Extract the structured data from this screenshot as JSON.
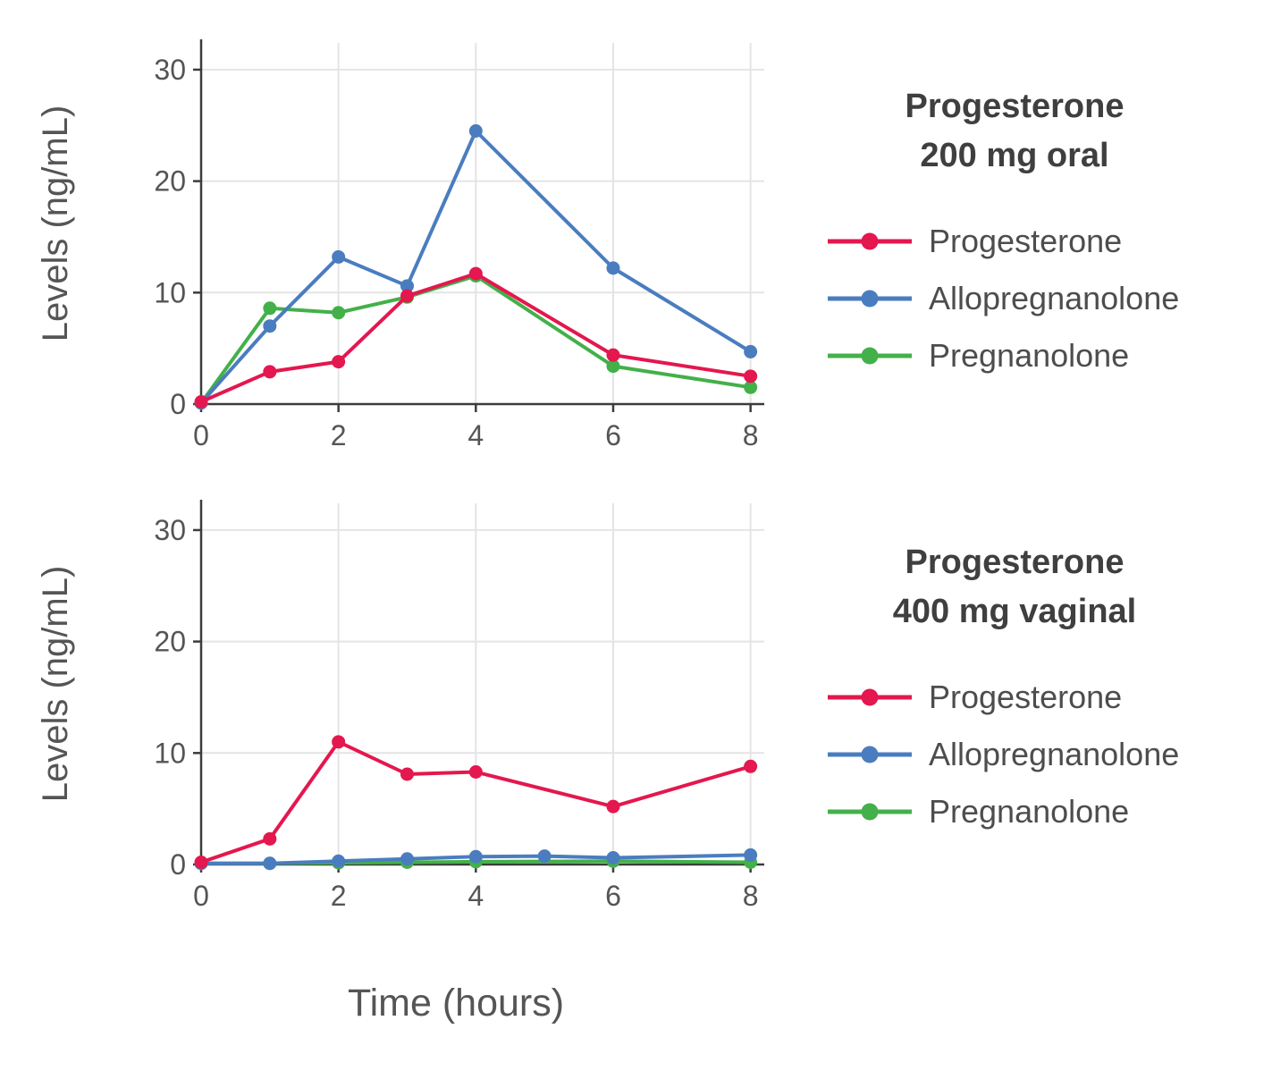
{
  "figure": {
    "xlabel": "Time (hours)",
    "ylabel": "Levels (ng/mL)"
  },
  "colors": {
    "progesterone": "#e4174e",
    "allopregnanolone": "#4a7dbf",
    "pregnanolone": "#43b049",
    "axis": "#3c3c3c",
    "grid": "#e4e4e4",
    "tick_text": "#555555",
    "title_text": "#3f3f3f",
    "legend_text": "#4d4d4d"
  },
  "chart_data": [
    {
      "type": "line",
      "title": "Progesterone 200 mg oral",
      "title_line1": "Progesterone",
      "title_line2": "200 mg oral",
      "xlabel": "Time (hours)",
      "ylabel": "Levels (ng/mL)",
      "xlim": [
        0,
        8.2
      ],
      "ylim": [
        0,
        32.4
      ],
      "x_ticks": [
        0,
        2,
        4,
        6,
        8
      ],
      "y_ticks": [
        0,
        10,
        20,
        30
      ],
      "grid": true,
      "legend_position": "right",
      "series": [
        {
          "name": "Progesterone",
          "color": "#e4174e",
          "x": [
            0,
            1,
            2,
            3,
            4,
            6,
            8
          ],
          "y": [
            0.2,
            2.9,
            3.8,
            9.7,
            11.7,
            4.4,
            2.5
          ]
        },
        {
          "name": "Allopregnanolone",
          "color": "#4a7dbf",
          "x": [
            0,
            1,
            2,
            3,
            4,
            6,
            8
          ],
          "y": [
            0.1,
            7.0,
            13.2,
            10.6,
            24.5,
            12.2,
            4.7
          ]
        },
        {
          "name": "Pregnanolone",
          "color": "#43b049",
          "x": [
            0,
            1,
            2,
            3,
            4,
            6,
            8
          ],
          "y": [
            0.1,
            8.6,
            8.2,
            9.6,
            11.5,
            3.4,
            1.5
          ]
        }
      ]
    },
    {
      "type": "line",
      "title": "Progesterone 400 mg vaginal",
      "title_line1": "Progesterone",
      "title_line2": "400 mg vaginal",
      "xlabel": "Time (hours)",
      "ylabel": "Levels (ng/mL)",
      "xlim": [
        0,
        8.2
      ],
      "ylim": [
        0,
        32.4
      ],
      "x_ticks": [
        0,
        2,
        4,
        6,
        8
      ],
      "y_ticks": [
        0,
        10,
        20,
        30
      ],
      "grid": true,
      "legend_position": "right",
      "series": [
        {
          "name": "Progesterone",
          "color": "#e4174e",
          "x": [
            0,
            1,
            2,
            3,
            4,
            6,
            8
          ],
          "y": [
            0.2,
            2.3,
            11.0,
            8.1,
            8.3,
            5.2,
            8.8
          ]
        },
        {
          "name": "Allopregnanolone",
          "color": "#4a7dbf",
          "x": [
            0,
            1,
            2,
            3,
            4,
            5,
            6,
            8
          ],
          "y": [
            0.1,
            0.1,
            0.3,
            0.5,
            0.7,
            0.75,
            0.6,
            0.85
          ]
        },
        {
          "name": "Pregnanolone",
          "color": "#43b049",
          "x": [
            0,
            1,
            2,
            3,
            4,
            6,
            8
          ],
          "y": [
            0.1,
            0.1,
            0.15,
            0.2,
            0.25,
            0.3,
            0.2
          ]
        }
      ]
    }
  ]
}
